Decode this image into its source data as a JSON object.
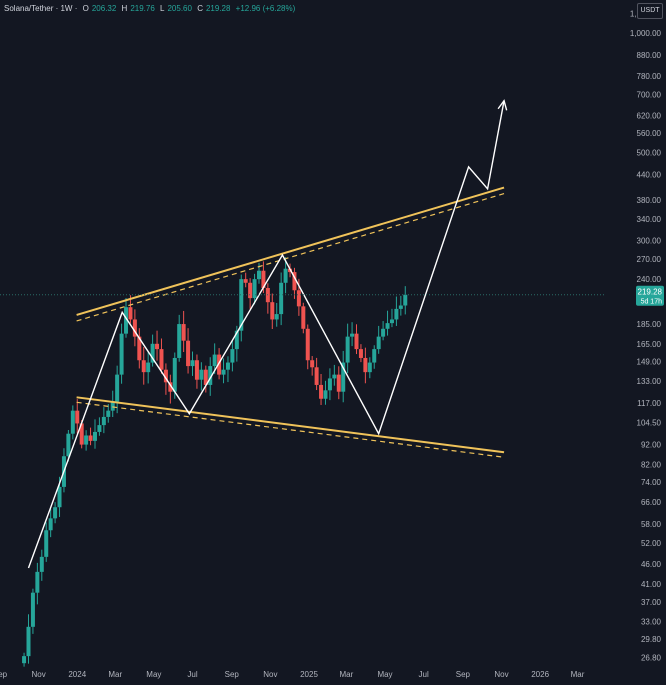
{
  "header": {
    "symbol": "Solana/Tether · 1W ·",
    "open_label": "O",
    "open_value": "206.32",
    "high_label": "H",
    "high_value": "219.76",
    "low_label": "L",
    "low_value": "205.60",
    "close_label": "C",
    "close_value": "219.28",
    "change": "+12.96 (+6.28%)"
  },
  "currency_button": "USDT",
  "price_tag": {
    "price": "219.28",
    "countdown": "5d 17h"
  },
  "colors": {
    "background": "#131722",
    "up": "#26a69a",
    "down": "#ef5350",
    "trendline": "#f0c35a",
    "projection": "#ffffff",
    "axis_text": "#b2b5be",
    "price_line": "#2b6b66"
  },
  "chart_data": {
    "type": "candlestick",
    "timeframe": "1W",
    "y_scale": "log",
    "ylim": [
      25.5,
      1210
    ],
    "xlim": [
      "2023-09-01",
      "2026-04-15"
    ],
    "y_ticks": [
      "1,120.00",
      "1,000.00",
      "880.00",
      "780.00",
      "700.00",
      "620.00",
      "560.00",
      "500.00",
      "440.00",
      "380.00",
      "340.00",
      "300.00",
      "270.00",
      "240.00",
      "210.00",
      "185.00",
      "165.00",
      "149.00",
      "133.00",
      "117.00",
      "104.50",
      "92.00",
      "82.00",
      "74.00",
      "66.00",
      "58.00",
      "52.00",
      "46.00",
      "41.00",
      "37.00",
      "33.00",
      "29.80",
      "26.80"
    ],
    "x_ticks": [
      {
        "label": "Sep",
        "date": "2023-09-01"
      },
      {
        "label": "Nov",
        "date": "2023-11-01"
      },
      {
        "label": "2024",
        "date": "2024-01-01"
      },
      {
        "label": "Mar",
        "date": "2024-03-01"
      },
      {
        "label": "May",
        "date": "2024-05-01"
      },
      {
        "label": "Jul",
        "date": "2024-07-01"
      },
      {
        "label": "Sep",
        "date": "2024-09-01"
      },
      {
        "label": "Nov",
        "date": "2024-11-01"
      },
      {
        "label": "2025",
        "date": "2025-01-01"
      },
      {
        "label": "Mar",
        "date": "2025-03-01"
      },
      {
        "label": "May",
        "date": "2025-05-01"
      },
      {
        "label": "Jul",
        "date": "2025-07-01"
      },
      {
        "label": "Sep",
        "date": "2025-09-01"
      },
      {
        "label": "Nov",
        "date": "2025-11-01"
      },
      {
        "label": "2026",
        "date": "2026-01-01"
      },
      {
        "label": "Mar",
        "date": "2026-03-01"
      }
    ],
    "candles_start": "2023-10-09",
    "candles_close": [
      27,
      32,
      39,
      44,
      48,
      56,
      60,
      64,
      72,
      86,
      98,
      112,
      104,
      92,
      97,
      94,
      99,
      103,
      108,
      112,
      118,
      138,
      175,
      204,
      190,
      172,
      150,
      140,
      148,
      165,
      160,
      142,
      132,
      125,
      152,
      185,
      168,
      145,
      150,
      134,
      142,
      130,
      145,
      155,
      138,
      142,
      148,
      160,
      178,
      240,
      235,
      215,
      240,
      252,
      228,
      210,
      190,
      196,
      235,
      255,
      250,
      225,
      205,
      180,
      150,
      144,
      130,
      120,
      126,
      135,
      138,
      125,
      148,
      172,
      175,
      160,
      152,
      140,
      148,
      160,
      172,
      180,
      186,
      190,
      202,
      206,
      219.28
    ],
    "trendlines": [
      {
        "name": "upper-resistance",
        "from": {
          "date": "2023-12-31",
          "price": 195
        },
        "to": {
          "date": "2025-11-05",
          "price": 408
        }
      },
      {
        "name": "lower-support",
        "from": {
          "date": "2023-12-31",
          "price": 121
        },
        "to": {
          "date": "2025-11-05",
          "price": 88
        }
      }
    ],
    "projection_path": [
      {
        "date": "2023-10-16",
        "price": 45
      },
      {
        "date": "2024-03-12",
        "price": 198
      },
      {
        "date": "2024-06-26",
        "price": 110
      },
      {
        "date": "2024-11-20",
        "price": 276
      },
      {
        "date": "2025-04-21",
        "price": 98
      },
      {
        "date": "2025-09-10",
        "price": 460
      },
      {
        "date": "2025-10-10",
        "price": 405
      },
      {
        "date": "2025-11-05",
        "price": 675
      }
    ]
  }
}
